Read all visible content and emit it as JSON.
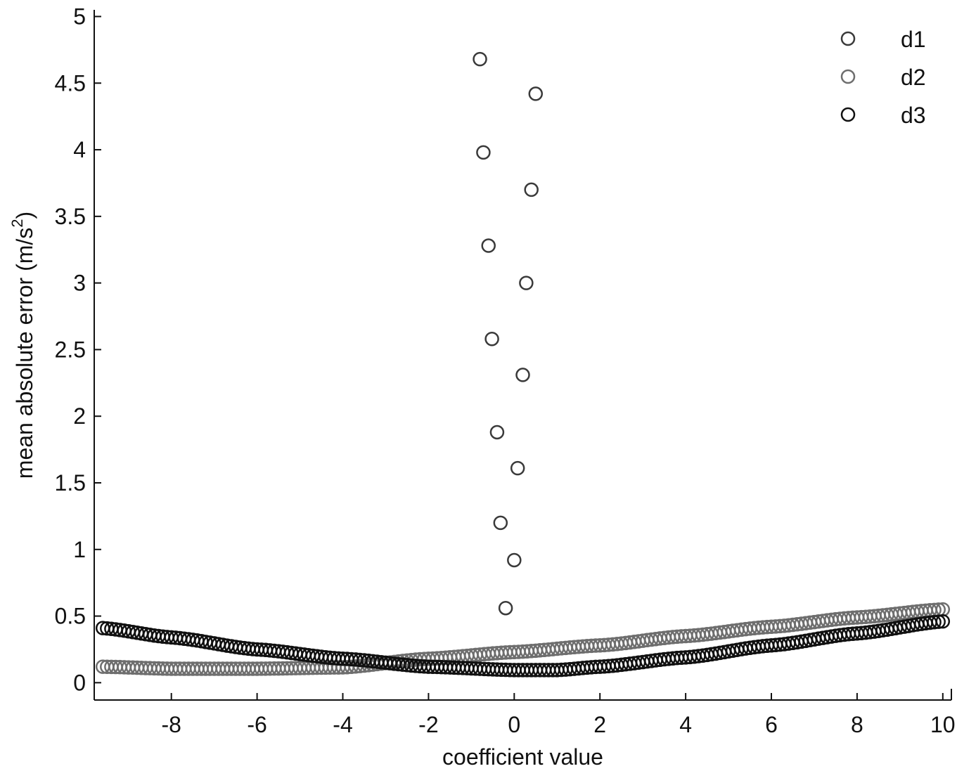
{
  "chart_data": {
    "type": "scatter",
    "title": "",
    "xlabel": "coefficient value",
    "ylabel": "mean absolute error (m/s",
    "ylabel_superscript": "2",
    "ylabel_suffix": ")",
    "xlim": [
      -9.8,
      10.2
    ],
    "ylim": [
      -0.13,
      5.05
    ],
    "xticks": [
      -8,
      -6,
      -4,
      -2,
      0,
      2,
      4,
      6,
      8,
      10
    ],
    "xtick_labels": [
      "-8",
      "-6",
      "-4",
      "-2",
      "0",
      "2",
      "4",
      "6",
      "8",
      "10"
    ],
    "yticks": [
      0,
      0.5,
      1,
      1.5,
      2,
      2.5,
      3,
      3.5,
      4,
      4.5,
      5
    ],
    "ytick_labels": [
      "0",
      "0.5",
      "1",
      "1.5",
      "2",
      "2.5",
      "3",
      "3.5",
      "4",
      "4.5",
      "5"
    ],
    "grid": false,
    "legend_position": "top-right",
    "marker": "open-circle",
    "series": [
      {
        "name": "d1",
        "color": "#3a3a3a",
        "points": [
          [
            -0.8,
            4.68
          ],
          [
            0.5,
            4.42
          ],
          [
            -0.72,
            3.98
          ],
          [
            0.4,
            3.7
          ],
          [
            -0.6,
            3.28
          ],
          [
            0.28,
            3.0
          ],
          [
            -0.52,
            2.58
          ],
          [
            0.2,
            2.31
          ],
          [
            -0.4,
            1.88
          ],
          [
            0.08,
            1.61
          ],
          [
            -0.32,
            1.2
          ],
          [
            0.0,
            0.92
          ],
          [
            -0.2,
            0.56
          ]
        ]
      },
      {
        "name": "d2",
        "color": "#6e6e6e",
        "x_start": -9.6,
        "x_end": 10.0,
        "count": 197,
        "curve_anchors": [
          [
            -9.6,
            0.12
          ],
          [
            -8.0,
            0.105
          ],
          [
            -6.0,
            0.105
          ],
          [
            -4.0,
            0.115
          ],
          [
            -2.0,
            0.18
          ],
          [
            0.0,
            0.23
          ],
          [
            2.0,
            0.28
          ],
          [
            4.0,
            0.35
          ],
          [
            6.0,
            0.42
          ],
          [
            8.0,
            0.49
          ],
          [
            10.0,
            0.55
          ]
        ]
      },
      {
        "name": "d3",
        "color": "#111111",
        "x_start": -9.6,
        "x_end": 10.0,
        "count": 197,
        "curve_anchors": [
          [
            -9.6,
            0.41
          ],
          [
            -8.0,
            0.34
          ],
          [
            -6.0,
            0.25
          ],
          [
            -4.0,
            0.18
          ],
          [
            -2.0,
            0.12
          ],
          [
            0.0,
            0.095
          ],
          [
            1.0,
            0.095
          ],
          [
            2.0,
            0.12
          ],
          [
            4.0,
            0.19
          ],
          [
            6.0,
            0.28
          ],
          [
            8.0,
            0.37
          ],
          [
            10.0,
            0.46
          ]
        ]
      }
    ]
  }
}
